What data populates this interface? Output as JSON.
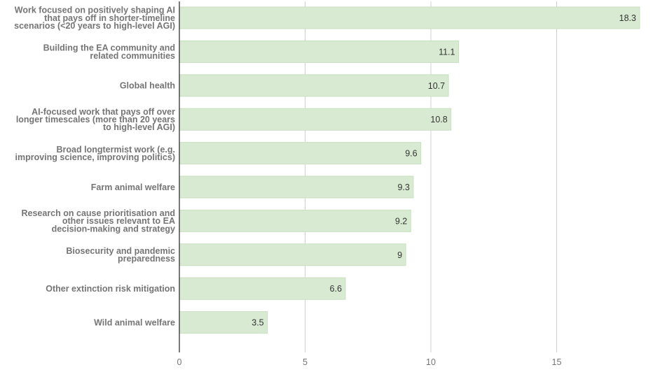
{
  "chart_data": {
    "type": "bar",
    "orientation": "horizontal",
    "title": "",
    "xlabel": "",
    "ylabel": "",
    "categories": [
      [
        "Work focused on positively shaping AI",
        "that pays off in shorter-timeline",
        "scenarios (<20 years to high-level AGI)"
      ],
      [
        "Building the EA community and",
        "related communities"
      ],
      [
        "Global health"
      ],
      [
        "AI-focused work that pays off over",
        "longer timescales (more than 20 years",
        "to high-level AGI)"
      ],
      [
        "Broad longtermist work (e.g.",
        "improving science, improving politics)"
      ],
      [
        "Farm animal welfare"
      ],
      [
        "Research on cause prioritisation and",
        "other issues relevant to EA",
        "decision-making and strategy"
      ],
      [
        "Biosecurity and pandemic",
        "preparedness"
      ],
      [
        "Other extinction risk mitigation"
      ],
      [
        "Wild animal welfare"
      ]
    ],
    "values": [
      18.3,
      11.1,
      10.7,
      10.8,
      9.6,
      9.3,
      9.2,
      9,
      6.6,
      3.5
    ],
    "value_labels": [
      "18.3",
      "11.1",
      "10.7",
      "10.8",
      "9.6",
      "9.3",
      "9.2",
      "9",
      "6.6",
      "3.5"
    ],
    "xlim": [
      0,
      18.5
    ],
    "xticks": [
      0,
      5,
      10,
      15
    ],
    "xtick_labels": [
      "0",
      "5",
      "10",
      "15"
    ],
    "grid": "vertical",
    "legend": "none",
    "colors": {
      "bar_fill": "#d9ead3",
      "bar_stroke": "#c9dfc1",
      "grid": "#d0d0d0",
      "axis": "#222222",
      "category_text": "#757575",
      "value_text": "#333333"
    }
  }
}
